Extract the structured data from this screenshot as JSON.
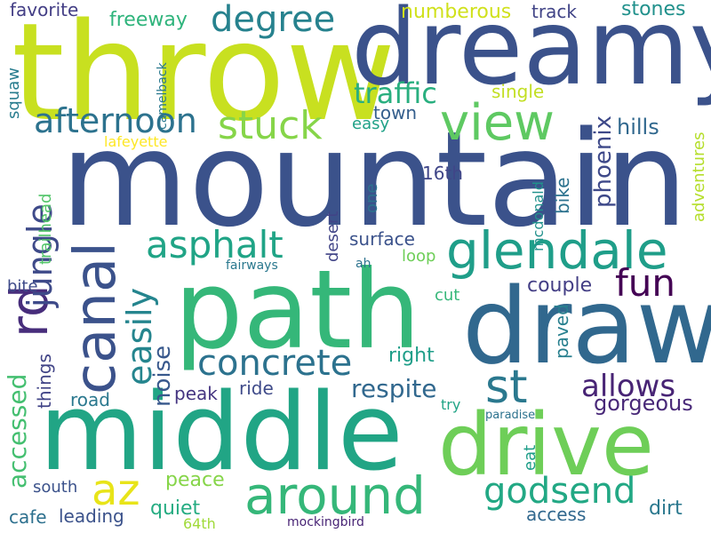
{
  "words": [
    {
      "text": "mountain",
      "color": "#3b528b"
    },
    {
      "text": "throw",
      "color": "#c8e020"
    },
    {
      "text": "dreamy",
      "color": "#3b528b"
    },
    {
      "text": "path",
      "color": "#35b779"
    },
    {
      "text": "draw",
      "color": "#31688e"
    },
    {
      "text": "middle",
      "color": "#21a585"
    },
    {
      "text": "drive",
      "color": "#6ece58"
    },
    {
      "text": "view",
      "color": "#5ec962"
    },
    {
      "text": "degree",
      "color": "#26828e"
    },
    {
      "text": "afternoon",
      "color": "#2c728e"
    },
    {
      "text": "stuck",
      "color": "#86d549"
    },
    {
      "text": "glendale",
      "color": "#1f9e89"
    },
    {
      "text": "canal",
      "color": "#3b528b"
    },
    {
      "text": "rd",
      "color": "#472d7b"
    },
    {
      "text": "jungle",
      "color": "#3e4a89"
    },
    {
      "text": "asphalt",
      "color": "#20a486"
    },
    {
      "text": "az",
      "color": "#e8e419"
    },
    {
      "text": "around",
      "color": "#35b779"
    },
    {
      "text": "concrete",
      "color": "#2c728e"
    },
    {
      "text": "st",
      "color": "#2a788e"
    },
    {
      "text": "godsend",
      "color": "#22a884"
    },
    {
      "text": "fun",
      "color": "#440154"
    },
    {
      "text": "allows",
      "color": "#482475"
    },
    {
      "text": "easily",
      "color": "#25858e"
    },
    {
      "text": "traffic",
      "color": "#29af7f"
    },
    {
      "text": "phoenix",
      "color": "#3e4989"
    },
    {
      "text": "accessed",
      "color": "#44bf70"
    },
    {
      "text": "respite",
      "color": "#31688e"
    },
    {
      "text": "noise",
      "color": "#38588c"
    },
    {
      "text": "freeway",
      "color": "#2fb47c"
    },
    {
      "text": "favorite",
      "color": "#433e85"
    },
    {
      "text": "numberous",
      "color": "#d0e11c"
    },
    {
      "text": "track",
      "color": "#414487"
    },
    {
      "text": "stones",
      "color": "#21918c"
    },
    {
      "text": "town",
      "color": "#355f8d"
    },
    {
      "text": "single",
      "color": "#c2df23"
    },
    {
      "text": "hills",
      "color": "#31688e"
    },
    {
      "text": "easy",
      "color": "#1fa187"
    },
    {
      "text": "squaw",
      "color": "#287c8e"
    },
    {
      "text": "lafeyette",
      "color": "#fde725"
    },
    {
      "text": "camelback",
      "color": "#2a788e"
    },
    {
      "text": "16th",
      "color": "#404688"
    },
    {
      "text": "trailhead",
      "color": "#52c569"
    },
    {
      "text": "one",
      "color": "#2d718e"
    },
    {
      "text": "mcdonald",
      "color": "#21918c"
    },
    {
      "text": "bike",
      "color": "#2c728e"
    },
    {
      "text": "adventures",
      "color": "#b5de2b"
    },
    {
      "text": "surface",
      "color": "#3b528b"
    },
    {
      "text": "desert",
      "color": "#414487"
    },
    {
      "text": "loop",
      "color": "#6ece58"
    },
    {
      "text": "fairways",
      "color": "#2a788e"
    },
    {
      "text": "ah",
      "color": "#2c728e"
    },
    {
      "text": "bite",
      "color": "#3e4a89"
    },
    {
      "text": "couple",
      "color": "#433e85"
    },
    {
      "text": "cut",
      "color": "#35b779"
    },
    {
      "text": "right",
      "color": "#1f9e89"
    },
    {
      "text": "paved",
      "color": "#277f8e"
    },
    {
      "text": "things",
      "color": "#414487"
    },
    {
      "text": "road",
      "color": "#2a788e"
    },
    {
      "text": "peak",
      "color": "#453581"
    },
    {
      "text": "ride",
      "color": "#3e4a89"
    },
    {
      "text": "gorgeous",
      "color": "#482878"
    },
    {
      "text": "try",
      "color": "#20a486"
    },
    {
      "text": "paradise",
      "color": "#2c728e"
    },
    {
      "text": "eat",
      "color": "#1f9e89"
    },
    {
      "text": "south",
      "color": "#3b528b"
    },
    {
      "text": "peace",
      "color": "#86d549"
    },
    {
      "text": "quiet",
      "color": "#25ac82"
    },
    {
      "text": "dirt",
      "color": "#2a788e"
    },
    {
      "text": "cafe",
      "color": "#2d708e"
    },
    {
      "text": "leading",
      "color": "#3b528b"
    },
    {
      "text": "access",
      "color": "#31688e"
    },
    {
      "text": "64th",
      "color": "#a0da39"
    },
    {
      "text": "mockingbird",
      "color": "#482475"
    }
  ]
}
